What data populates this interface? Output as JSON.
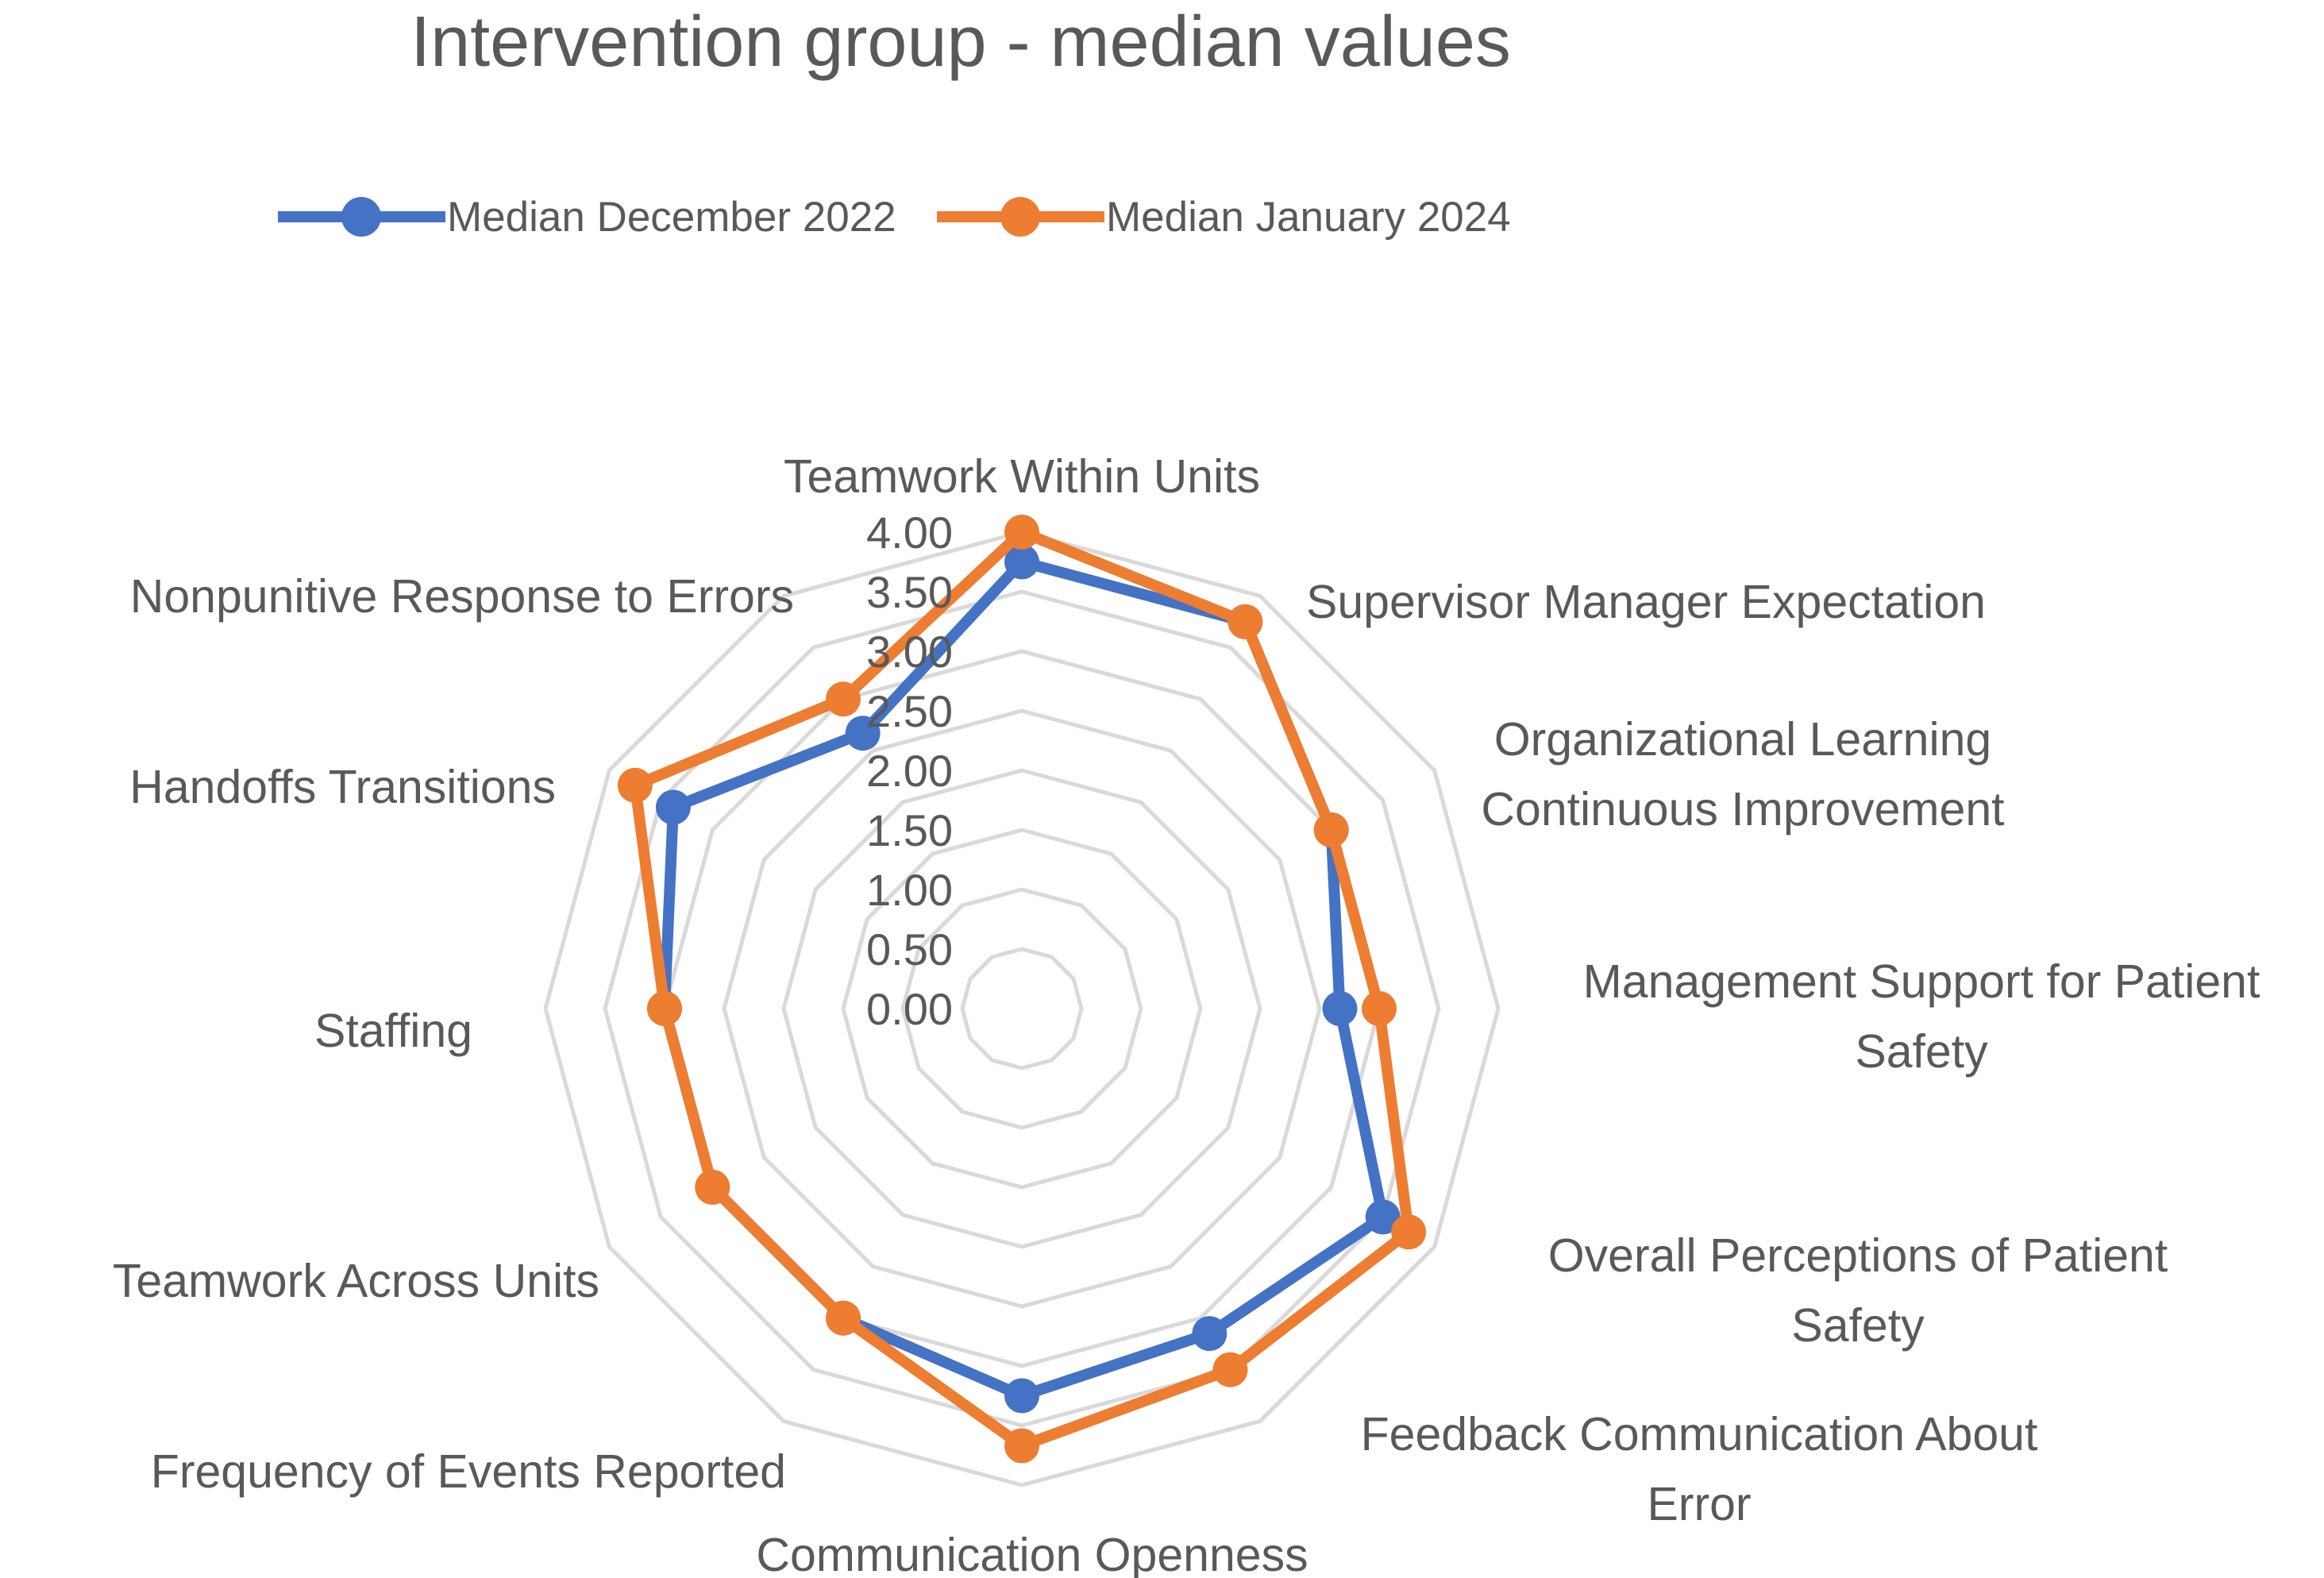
{
  "title": "Intervention group - median values",
  "colors": {
    "grid": "#D9D9D9",
    "text": "#595959",
    "series_dec_2022": "#4472C4",
    "series_jan_2024": "#ED7D31",
    "background": "#FFFFFF"
  },
  "chart_data": {
    "type": "line",
    "subtype": "radar",
    "title": "Intervention group - median values",
    "grid": "concentric-polygon-rings",
    "legend_position": "top",
    "categories": [
      "Teamwork Within Units",
      "Supervisor Manager Expectation",
      "Organizational Learning Continuous Improvement",
      "Management Support for Patient Safety",
      "Overall Perceptions of Patient Safety",
      "Feedback Communication About Error",
      "Communication Openness",
      "Frequency of Events Reported",
      "Teamwork Across Units",
      "Staffing",
      "Handoffs Transitions",
      "Nonpunitive Response to Errors"
    ],
    "axis_labels": [
      [
        "Teamwork Within Units"
      ],
      [
        "Supervisor Manager Expectation"
      ],
      [
        "Organizational Learning",
        "Continuous Improvement"
      ],
      [
        "Management Support for Patient",
        "Safety"
      ],
      [
        "Overall Perceptions of Patient",
        "Safety"
      ],
      [
        "Feedback Communication About",
        "Error"
      ],
      [
        "Communication Openness"
      ],
      [
        "Frequency of Events Reported"
      ],
      [
        "Teamwork Across Units"
      ],
      [
        "Staffing"
      ],
      [
        "Handoffs Transitions"
      ],
      [
        "Nonpunitive Response to Errors"
      ]
    ],
    "series": [
      {
        "name": "Median December 2022",
        "color": "#4472C4",
        "values": [
          3.75,
          3.75,
          3.0,
          2.67,
          3.5,
          3.15,
          3.25,
          3.0,
          3.0,
          3.0,
          3.38,
          2.67
        ]
      },
      {
        "name": "Median January 2024",
        "color": "#ED7D31",
        "values": [
          4.0,
          3.75,
          3.0,
          3.0,
          3.75,
          3.5,
          3.67,
          3.0,
          3.0,
          3.0,
          3.75,
          3.0
        ]
      }
    ],
    "r_axis": {
      "min": 0,
      "max": 4,
      "step": 0.5,
      "tick_labels": [
        "4.00",
        "3.50",
        "3.00",
        "2.50",
        "2.00",
        "1.50",
        "1.00",
        "0.50",
        "0.00"
      ]
    }
  }
}
